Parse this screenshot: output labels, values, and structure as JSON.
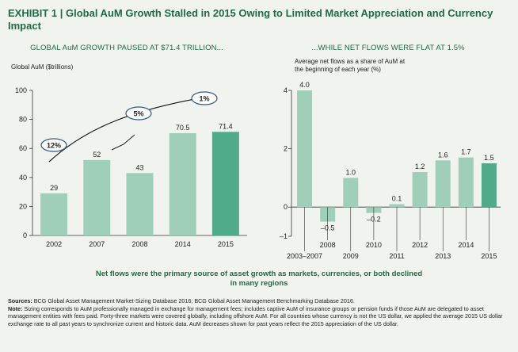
{
  "title": "EXHIBIT 1 | Global AuM Growth Stalled in 2015 Owing to Limited Market Appreciation and Currency Impact",
  "colors": {
    "accent": "#1f6b45",
    "bar_light": "#9fcfb8",
    "bar_dark": "#4fab8a"
  },
  "chart_data": [
    {
      "type": "bar",
      "subtitle": "GLOBAL AuM GROWTH PAUSED AT $71.4 TRILLION...",
      "ylabel": "Global AuM ($trillions)",
      "categories": [
        "2002",
        "2007",
        "2008",
        "2014",
        "2015"
      ],
      "values": [
        29,
        52,
        43,
        70.5,
        71.4
      ],
      "value_labels": [
        "29",
        "52",
        "43",
        "70.5",
        "71.4"
      ],
      "highlight_index": 4,
      "ylim": [
        0,
        100
      ],
      "yticks": [
        0,
        20,
        40,
        60,
        80,
        100
      ],
      "annotations": [
        "12%",
        "5%",
        "1%"
      ]
    },
    {
      "type": "bar",
      "subtitle": "...WHILE NET FLOWS WERE FLAT AT 1.5%",
      "ylabel": "Average net flows as a share of AuM at the beginning of each year (%)",
      "categories": [
        "2003–2007",
        "2008",
        "2009",
        "2010",
        "2011",
        "2012",
        "2013",
        "2014",
        "2015"
      ],
      "values": [
        4.0,
        -0.5,
        1.0,
        -0.2,
        0.1,
        1.2,
        1.6,
        1.7,
        1.5
      ],
      "value_labels": [
        "4.0",
        "–0.5",
        "1.0",
        "–0.2",
        "0.1",
        "1.2",
        "1.6",
        "1.7",
        "1.5"
      ],
      "highlight_index": 8,
      "ylim": [
        -1,
        4
      ],
      "yticks": [
        -1,
        0,
        2,
        4
      ],
      "ytick_labels": [
        "–1",
        "0",
        "2",
        "4"
      ]
    }
  ],
  "callout": "Net flows were the primary source of asset growth as markets, currencies, or both declined in many regions",
  "sources": {
    "sources_label": "Sources:",
    "sources_text": "BCG Global Asset Management Market-Sizing Database 2016; BCG Global Asset Management Benchmarking Database 2016.",
    "note_label": "Note:",
    "note_text": "Sizing corresponds to AuM professionally managed in exchange for management fees; includes captive AuM of insurance groups or pension funds if those AuM are delegated to asset management entities with fees paid. Forty-three markets were covered globally, including offshore AuM. For all countries whose currency is not the US dollar, we applied the average 2015 US dollar exchange rate to all past years to synchronize current and historic data. AuM decreases shown for past years reflect the 2015 appreciation of the US dollar."
  }
}
